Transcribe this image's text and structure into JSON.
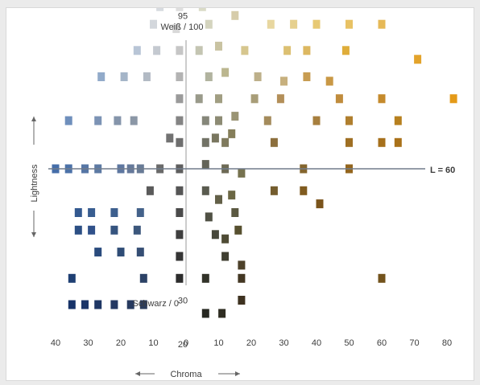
{
  "chart_data": {
    "type": "scatter",
    "top_label": "Weiß / 100",
    "bottom_label": "Schwarz / 0",
    "mid_label": "L = 60",
    "xlabel": "Chroma",
    "ylabel": "Lightness",
    "x_ticks": [
      "40",
      "30",
      "20",
      "10",
      "0",
      "10",
      "20",
      "30",
      "40",
      "50",
      "60",
      "70",
      "80"
    ],
    "y_ticks": [
      {
        "text": "95",
        "l": 95
      },
      {
        "text": "30",
        "l": 30
      },
      {
        "text": "20",
        "l": 20
      },
      {
        "text": "10",
        "l": 10
      }
    ],
    "reference_lightness": 60,
    "grid": false,
    "points": [
      {
        "c": -8,
        "l": 97,
        "color": "#d7dbe0"
      },
      {
        "c": -2,
        "l": 97,
        "color": "#dedede"
      },
      {
        "c": 5,
        "l": 97,
        "color": "#dadbc8"
      },
      {
        "c": 12,
        "l": 98,
        "color": "#d9d2b6"
      },
      {
        "c": -10,
        "l": 93,
        "color": "#d3d7dc"
      },
      {
        "c": -3,
        "l": 92,
        "color": "#d8d8d8"
      },
      {
        "c": 7,
        "l": 93,
        "color": "#d4d4be"
      },
      {
        "c": 15,
        "l": 95,
        "color": "#d6ccaa"
      },
      {
        "c": 26,
        "l": 93,
        "color": "#e8d7a0"
      },
      {
        "c": 33,
        "l": 93,
        "color": "#e6d08e"
      },
      {
        "c": 40,
        "l": 93,
        "color": "#e7c974"
      },
      {
        "c": 50,
        "l": 93,
        "color": "#e8c264"
      },
      {
        "c": 60,
        "l": 93,
        "color": "#e6b957"
      },
      {
        "c": -15,
        "l": 87,
        "color": "#b8c5d6"
      },
      {
        "c": -9,
        "l": 87,
        "color": "#c4c9d0"
      },
      {
        "c": -2,
        "l": 87,
        "color": "#c6c6c6"
      },
      {
        "c": 4,
        "l": 87,
        "color": "#c4c5b2"
      },
      {
        "c": 10,
        "l": 88,
        "color": "#c9c3a2"
      },
      {
        "c": 18,
        "l": 87,
        "color": "#d6c68e"
      },
      {
        "c": 31,
        "l": 87,
        "color": "#dcc072"
      },
      {
        "c": 37,
        "l": 87,
        "color": "#ddb861"
      },
      {
        "c": 49,
        "l": 87,
        "color": "#dfad3a"
      },
      {
        "c": 71,
        "l": 85,
        "color": "#e3a32b"
      },
      {
        "c": -26,
        "l": 81,
        "color": "#92abca"
      },
      {
        "c": -19,
        "l": 81,
        "color": "#a5b5c8"
      },
      {
        "c": -12,
        "l": 81,
        "color": "#b2bac4"
      },
      {
        "c": -2,
        "l": 81,
        "color": "#b3b3b3"
      },
      {
        "c": 7,
        "l": 81,
        "color": "#b1b39f"
      },
      {
        "c": 12,
        "l": 82,
        "color": "#bbb68f"
      },
      {
        "c": 22,
        "l": 81,
        "color": "#bdb08a"
      },
      {
        "c": 30,
        "l": 80,
        "color": "#c7b07e"
      },
      {
        "c": 37,
        "l": 81,
        "color": "#c79c52"
      },
      {
        "c": 44,
        "l": 80,
        "color": "#c99845"
      },
      {
        "c": -2,
        "l": 76,
        "color": "#9a9a9a"
      },
      {
        "c": 4,
        "l": 76,
        "color": "#999a8a"
      },
      {
        "c": 10,
        "l": 76,
        "color": "#a19e82"
      },
      {
        "c": 21,
        "l": 76,
        "color": "#a89d78"
      },
      {
        "c": 29,
        "l": 76,
        "color": "#b38f59"
      },
      {
        "c": 47,
        "l": 76,
        "color": "#c08c3c"
      },
      {
        "c": 60,
        "l": 76,
        "color": "#c58a2c"
      },
      {
        "c": 82,
        "l": 76,
        "color": "#e49a18"
      },
      {
        "c": -36,
        "l": 71,
        "color": "#6f8fbc"
      },
      {
        "c": -27,
        "l": 71,
        "color": "#7c93b5"
      },
      {
        "c": -21,
        "l": 71,
        "color": "#8595ab"
      },
      {
        "c": -16,
        "l": 71,
        "color": "#8b97a6"
      },
      {
        "c": -2,
        "l": 71,
        "color": "#848484"
      },
      {
        "c": 6,
        "l": 71,
        "color": "#86877a"
      },
      {
        "c": 10,
        "l": 71,
        "color": "#8d8b74"
      },
      {
        "c": 15,
        "l": 72,
        "color": "#9a9474"
      },
      {
        "c": 25,
        "l": 71,
        "color": "#a48b5c"
      },
      {
        "c": 40,
        "l": 71,
        "color": "#a77f3e"
      },
      {
        "c": 50,
        "l": 71,
        "color": "#b07f2e"
      },
      {
        "c": 65,
        "l": 71,
        "color": "#b7801f"
      },
      {
        "c": -5,
        "l": 67,
        "color": "#727272"
      },
      {
        "c": -2,
        "l": 66,
        "color": "#6e6e6e"
      },
      {
        "c": 6,
        "l": 66,
        "color": "#727366"
      },
      {
        "c": 9,
        "l": 67,
        "color": "#79765f"
      },
      {
        "c": 12,
        "l": 66,
        "color": "#7f7a5e"
      },
      {
        "c": 14,
        "l": 68,
        "color": "#857e5a"
      },
      {
        "c": 27,
        "l": 66,
        "color": "#8c6f3d"
      },
      {
        "c": 50,
        "l": 66,
        "color": "#9f6f23"
      },
      {
        "c": 60,
        "l": 66,
        "color": "#a6701c"
      },
      {
        "c": 65,
        "l": 66,
        "color": "#a97119"
      },
      {
        "c": -8,
        "l": 60,
        "color": "#6a6a6a"
      },
      {
        "c": -2,
        "l": 60,
        "color": "#5e5e5e"
      },
      {
        "c": 6,
        "l": 61,
        "color": "#636458"
      },
      {
        "c": 12,
        "l": 60,
        "color": "#6d6a55"
      },
      {
        "c": 17,
        "l": 59,
        "color": "#76724f"
      },
      {
        "c": 36,
        "l": 60,
        "color": "#84652e"
      },
      {
        "c": 50,
        "l": 60,
        "color": "#93651e"
      },
      {
        "c": -40,
        "l": 60,
        "color": "#456ea9"
      },
      {
        "c": -36,
        "l": 60,
        "color": "#4c72a8"
      },
      {
        "c": -31,
        "l": 60,
        "color": "#5676a5"
      },
      {
        "c": -27,
        "l": 60,
        "color": "#5d7aa3"
      },
      {
        "c": -20,
        "l": 60,
        "color": "#5e77a0"
      },
      {
        "c": -17,
        "l": 60,
        "color": "#65799a"
      },
      {
        "c": -14,
        "l": 60,
        "color": "#687b96"
      },
      {
        "c": -11,
        "l": 55,
        "color": "#5a5a5a"
      },
      {
        "c": -2,
        "l": 55,
        "color": "#555555"
      },
      {
        "c": 6,
        "l": 55,
        "color": "#5a5b4f"
      },
      {
        "c": 10,
        "l": 53,
        "color": "#636048"
      },
      {
        "c": 14,
        "l": 54,
        "color": "#6b6744"
      },
      {
        "c": 27,
        "l": 55,
        "color": "#745d2e"
      },
      {
        "c": 36,
        "l": 55,
        "color": "#805b1f"
      },
      {
        "c": -33,
        "l": 50,
        "color": "#33598f"
      },
      {
        "c": -29,
        "l": 50,
        "color": "#385d90"
      },
      {
        "c": -22,
        "l": 50,
        "color": "#3d5f8e"
      },
      {
        "c": -14,
        "l": 50,
        "color": "#44628a"
      },
      {
        "c": -2,
        "l": 50,
        "color": "#4a4a4a"
      },
      {
        "c": 7,
        "l": 49,
        "color": "#505144"
      },
      {
        "c": 15,
        "l": 50,
        "color": "#5b5941"
      },
      {
        "c": 41,
        "l": 52,
        "color": "#7a541b"
      },
      {
        "c": -33,
        "l": 46,
        "color": "#2c4f84"
      },
      {
        "c": -29,
        "l": 46,
        "color": "#30518a"
      },
      {
        "c": -22,
        "l": 46,
        "color": "#36547f"
      },
      {
        "c": -15,
        "l": 46,
        "color": "#3c577c"
      },
      {
        "c": -2,
        "l": 45,
        "color": "#3f3f3f"
      },
      {
        "c": 9,
        "l": 45,
        "color": "#46473b"
      },
      {
        "c": 12,
        "l": 44,
        "color": "#4f4c35"
      },
      {
        "c": 16,
        "l": 46,
        "color": "#57502f"
      },
      {
        "c": -27,
        "l": 41,
        "color": "#2a4b7d"
      },
      {
        "c": -20,
        "l": 41,
        "color": "#2f4c76"
      },
      {
        "c": -14,
        "l": 41,
        "color": "#354e74"
      },
      {
        "c": -2,
        "l": 40,
        "color": "#353535"
      },
      {
        "c": 12,
        "l": 40,
        "color": "#403f31"
      },
      {
        "c": 17,
        "l": 38,
        "color": "#4d412a"
      },
      {
        "c": -35,
        "l": 35,
        "color": "#1f3f73"
      },
      {
        "c": -13,
        "l": 35,
        "color": "#2c4266"
      },
      {
        "c": -2,
        "l": 35,
        "color": "#2c2c2c"
      },
      {
        "c": 6,
        "l": 35,
        "color": "#323329"
      },
      {
        "c": 17,
        "l": 35,
        "color": "#433723"
      },
      {
        "c": 60,
        "l": 35,
        "color": "#73531c"
      },
      {
        "c": -35,
        "l": 29,
        "color": "#173368"
      },
      {
        "c": -31,
        "l": 29,
        "color": "#1b3669"
      },
      {
        "c": -27,
        "l": 29,
        "color": "#1f3765"
      },
      {
        "c": -22,
        "l": 29,
        "color": "#233862"
      },
      {
        "c": -17,
        "l": 29,
        "color": "#273a5f"
      },
      {
        "c": -13,
        "l": 29,
        "color": "#2b3c5c"
      },
      {
        "c": 17,
        "l": 30,
        "color": "#3e3220"
      },
      {
        "c": 6,
        "l": 27,
        "color": "#272821"
      },
      {
        "c": 11,
        "l": 27,
        "color": "#2f2d22"
      }
    ]
  }
}
